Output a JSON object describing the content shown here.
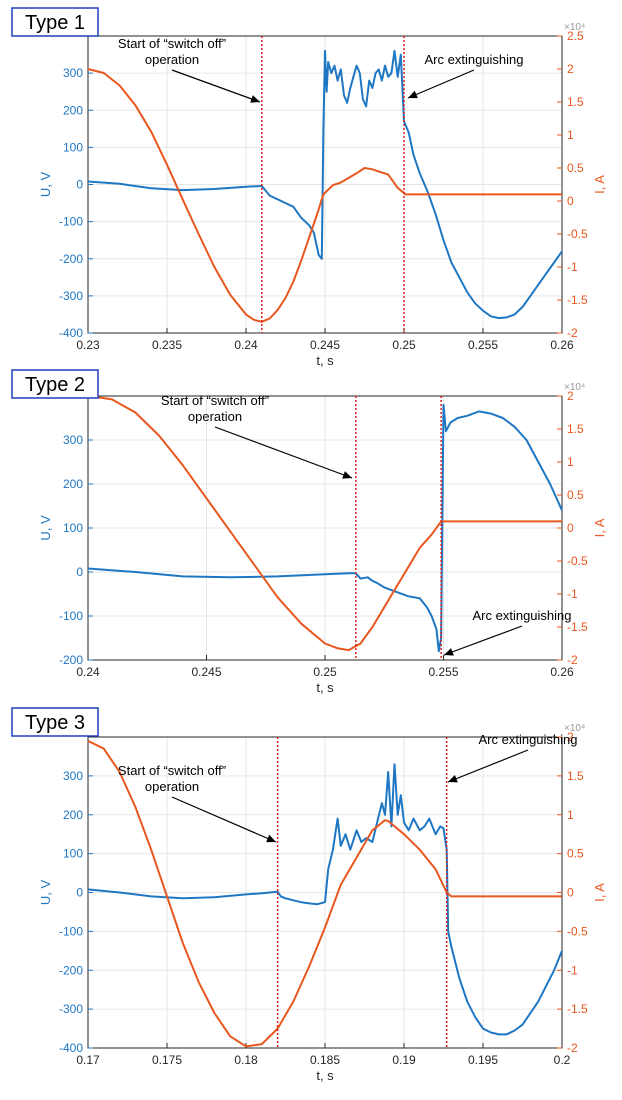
{
  "colors": {
    "voltage": "#1f77c4",
    "current": "#e8571e",
    "marker": "#e02020",
    "grid": "#e6e6e6",
    "axis": "#262626",
    "typeBox": "#1f3fbf"
  },
  "chart_data": [
    {
      "type": "line",
      "panel_label": "Type 1",
      "xlabel": "t, s",
      "ylabel_left": "U, V",
      "ylabel_right": "I, A",
      "right_exponent": "×10⁴",
      "xlim": [
        0.23,
        0.26
      ],
      "ylim_left": [
        -400,
        400
      ],
      "ylim_right": [
        -2,
        2.5
      ],
      "x_ticks": [
        "0.23",
        "0.235",
        "0.24",
        "0.245",
        "0.25",
        "0.255",
        "0.26"
      ],
      "y_ticks_left": [
        "-400",
        "-300",
        "-200",
        "-100",
        "0",
        "100",
        "200",
        "300"
      ],
      "y_ticks_right": [
        "-2",
        "-1.5",
        "-1",
        "-0.5",
        "0",
        "0.5",
        "1",
        "1.5",
        "2",
        "2.5"
      ],
      "grid": true,
      "annotations": [
        {
          "text": [
            "Start of “switch off”",
            "operation"
          ],
          "x": 0.241
        },
        {
          "text": [
            "Arc extinguishing"
          ],
          "x": 0.25
        }
      ],
      "vlines": [
        0.241,
        0.25
      ],
      "series": [
        {
          "name": "U, V",
          "axis": "left",
          "x": [
            0.23,
            0.232,
            0.234,
            0.236,
            0.238,
            0.24,
            0.241,
            0.2415,
            0.242,
            0.2425,
            0.243,
            0.2435,
            0.244,
            0.2443,
            0.2446,
            0.2448,
            0.2449,
            0.245,
            0.2451,
            0.2452,
            0.2454,
            0.2456,
            0.2458,
            0.246,
            0.2462,
            0.2464,
            0.2466,
            0.2468,
            0.247,
            0.2472,
            0.2474,
            0.2476,
            0.2478,
            0.248,
            0.2482,
            0.2484,
            0.2486,
            0.2488,
            0.249,
            0.2492,
            0.2494,
            0.2496,
            0.2498,
            0.25,
            0.2503,
            0.2506,
            0.251,
            0.2515,
            0.252,
            0.2525,
            0.253,
            0.2535,
            0.254,
            0.2545,
            0.255,
            0.2555,
            0.256,
            0.2565,
            0.257,
            0.2575,
            0.258,
            0.2585,
            0.259,
            0.2595,
            0.26
          ],
          "y": [
            8,
            2,
            -10,
            -15,
            -12,
            -6,
            -4,
            -30,
            -40,
            -50,
            -60,
            -90,
            -110,
            -130,
            -190,
            -200,
            150,
            360,
            250,
            330,
            300,
            320,
            280,
            310,
            240,
            220,
            260,
            290,
            320,
            300,
            230,
            210,
            280,
            260,
            300,
            310,
            280,
            320,
            290,
            300,
            360,
            290,
            350,
            170,
            140,
            80,
            30,
            -20,
            -80,
            -150,
            -210,
            -250,
            -290,
            -320,
            -340,
            -355,
            -360,
            -358,
            -350,
            -330,
            -300,
            -270,
            -240,
            -210,
            -180
          ]
        },
        {
          "name": "I, A",
          "axis": "right",
          "x": [
            0.23,
            0.231,
            0.232,
            0.233,
            0.234,
            0.235,
            0.236,
            0.237,
            0.238,
            0.239,
            0.24,
            0.2405,
            0.241,
            0.2415,
            0.242,
            0.2425,
            0.243,
            0.2435,
            0.244,
            0.2445,
            0.2449,
            0.2455,
            0.246,
            0.247,
            0.2475,
            0.248,
            0.249,
            0.2496,
            0.2501,
            0.26
          ],
          "y": [
            2.0,
            1.94,
            1.75,
            1.45,
            1.05,
            0.55,
            0.02,
            -0.5,
            -1.0,
            -1.42,
            -1.72,
            -1.8,
            -1.83,
            -1.78,
            -1.65,
            -1.47,
            -1.22,
            -0.9,
            -0.55,
            -0.2,
            0.1,
            0.24,
            0.28,
            0.42,
            0.5,
            0.48,
            0.4,
            0.2,
            0.1,
            0.1
          ]
        }
      ]
    },
    {
      "type": "line",
      "panel_label": "Type 2",
      "xlabel": "t, s",
      "ylabel_left": "U, V",
      "ylabel_right": "I, A",
      "right_exponent": "×10⁴",
      "xlim": [
        0.24,
        0.26
      ],
      "ylim_left": [
        -200,
        400
      ],
      "ylim_right": [
        -2,
        2
      ],
      "x_ticks": [
        "0.24",
        "0.245",
        "0.25",
        "0.255",
        "0.26"
      ],
      "y_ticks_left": [
        "-200",
        "-100",
        "0",
        "100",
        "200",
        "300"
      ],
      "y_ticks_right": [
        "-2",
        "-1.5",
        "-1",
        "-0.5",
        "0",
        "0.5",
        "1",
        "1.5",
        "2"
      ],
      "grid": true,
      "annotations": [
        {
          "text": [
            "Start of “switch off”",
            "operation"
          ],
          "x": 0.2513
        },
        {
          "text": [
            "Arc extinguishing"
          ],
          "x": 0.2549
        }
      ],
      "vlines": [
        0.2513,
        0.2549
      ],
      "series": [
        {
          "name": "U, V",
          "axis": "left",
          "x": [
            0.24,
            0.242,
            0.244,
            0.246,
            0.248,
            0.25,
            0.251,
            0.2513,
            0.2515,
            0.2518,
            0.252,
            0.2522,
            0.2525,
            0.253,
            0.2535,
            0.254,
            0.2543,
            0.2545,
            0.2547,
            0.2548,
            0.2549,
            0.255,
            0.2551,
            0.2553,
            0.2556,
            0.256,
            0.2565,
            0.257,
            0.2575,
            0.258,
            0.2585,
            0.259,
            0.2595,
            0.26
          ],
          "y": [
            8,
            0,
            -10,
            -12,
            -10,
            -5,
            -3,
            -3,
            -15,
            -12,
            -20,
            -25,
            -35,
            -45,
            -55,
            -60,
            -80,
            -100,
            -130,
            -180,
            -150,
            380,
            320,
            340,
            350,
            355,
            365,
            360,
            350,
            330,
            300,
            250,
            200,
            140
          ]
        },
        {
          "name": "I, A",
          "axis": "right",
          "x": [
            0.24,
            0.241,
            0.242,
            0.243,
            0.244,
            0.245,
            0.246,
            0.247,
            0.248,
            0.249,
            0.25,
            0.2505,
            0.251,
            0.2515,
            0.252,
            0.2525,
            0.253,
            0.2535,
            0.254,
            0.2545,
            0.2549,
            0.26
          ],
          "y": [
            2.0,
            1.95,
            1.75,
            1.4,
            0.95,
            0.45,
            -0.05,
            -0.55,
            -1.05,
            -1.45,
            -1.75,
            -1.82,
            -1.85,
            -1.75,
            -1.5,
            -1.2,
            -0.9,
            -0.6,
            -0.3,
            -0.1,
            0.1,
            0.1
          ]
        }
      ]
    },
    {
      "type": "line",
      "panel_label": "Type 3",
      "xlabel": "t, s",
      "ylabel_left": "U, V",
      "ylabel_right": "I, A",
      "right_exponent": "×10⁴",
      "xlim": [
        0.17,
        0.2
      ],
      "ylim_left": [
        -400,
        400
      ],
      "ylim_right": [
        -2,
        2
      ],
      "x_ticks": [
        "0.17",
        "0.175",
        "0.18",
        "0.185",
        "0.19",
        "0.195",
        "0.2"
      ],
      "y_ticks_left": [
        "-400",
        "-300",
        "-200",
        "-100",
        "0",
        "100",
        "200",
        "300"
      ],
      "y_ticks_right": [
        "-2",
        "-1.5",
        "-1",
        "-0.5",
        "0",
        "0.5",
        "1",
        "1.5",
        "2"
      ],
      "grid": true,
      "annotations": [
        {
          "text": [
            "Start of “switch off”",
            "operation"
          ],
          "x": 0.182
        },
        {
          "text": [
            "Arc extinguishing"
          ],
          "x": 0.1927
        }
      ],
      "vlines": [
        0.182,
        0.1927
      ],
      "series": [
        {
          "name": "U, V",
          "axis": "left",
          "x": [
            0.17,
            0.172,
            0.174,
            0.176,
            0.178,
            0.18,
            0.181,
            0.182,
            0.1822,
            0.1825,
            0.183,
            0.1835,
            0.184,
            0.1845,
            0.185,
            0.1852,
            0.1855,
            0.1858,
            0.186,
            0.1863,
            0.1866,
            0.187,
            0.1873,
            0.1876,
            0.188,
            0.1883,
            0.1886,
            0.1888,
            0.189,
            0.1892,
            0.1894,
            0.1896,
            0.1898,
            0.19,
            0.1903,
            0.1906,
            0.191,
            0.1913,
            0.1916,
            0.192,
            0.1923,
            0.1925,
            0.1927,
            0.1928,
            0.193,
            0.1935,
            0.194,
            0.1945,
            0.195,
            0.1955,
            0.196,
            0.1965,
            0.197,
            0.1975,
            0.198,
            0.1985,
            0.199,
            0.1995,
            0.2
          ],
          "y": [
            8,
            0,
            -10,
            -15,
            -12,
            -5,
            -2,
            2,
            -10,
            -15,
            -20,
            -25,
            -28,
            -30,
            -25,
            60,
            110,
            190,
            120,
            150,
            110,
            160,
            130,
            140,
            130,
            180,
            230,
            200,
            310,
            170,
            330,
            200,
            250,
            180,
            160,
            190,
            160,
            170,
            190,
            150,
            170,
            165,
            110,
            -100,
            -140,
            -220,
            -280,
            -320,
            -350,
            -360,
            -365,
            -365,
            -355,
            -340,
            -310,
            -280,
            -240,
            -200,
            -150
          ]
        },
        {
          "name": "I, A",
          "axis": "right",
          "x": [
            0.17,
            0.171,
            0.172,
            0.173,
            0.174,
            0.175,
            0.176,
            0.177,
            0.178,
            0.179,
            0.18,
            0.181,
            0.182,
            0.183,
            0.184,
            0.185,
            0.186,
            0.187,
            0.188,
            0.1888,
            0.189,
            0.19,
            0.191,
            0.192,
            0.1927,
            0.193,
            0.2
          ],
          "y": [
            1.95,
            1.85,
            1.55,
            1.1,
            0.55,
            -0.05,
            -0.65,
            -1.15,
            -1.55,
            -1.85,
            -1.98,
            -1.95,
            -1.75,
            -1.4,
            -0.95,
            -0.45,
            0.1,
            0.45,
            0.8,
            0.93,
            0.92,
            0.75,
            0.55,
            0.3,
            0.0,
            -0.05,
            -0.05
          ]
        }
      ]
    }
  ]
}
